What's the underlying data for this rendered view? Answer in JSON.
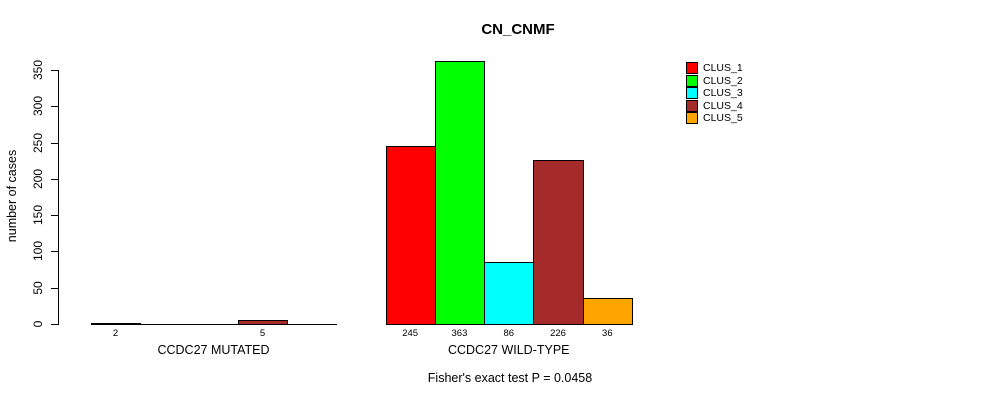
{
  "title": "CN_CNMF",
  "ylabel": "number of cases",
  "annotation": "Fisher's exact test P = 0.0458",
  "chart_data": {
    "type": "bar",
    "title": "CN_CNMF",
    "xlabel": "",
    "ylabel": "number of cases",
    "ylim": [
      0,
      350
    ],
    "yticks": [
      0,
      50,
      100,
      150,
      200,
      250,
      300,
      350
    ],
    "grid": false,
    "legend_position": "top-right",
    "series_names": [
      "CLUS_1",
      "CLUS_2",
      "CLUS_3",
      "CLUS_4",
      "CLUS_5"
    ],
    "series_colors": [
      "#FF0000",
      "#00FF00",
      "#00FFFF",
      "#A52A2A",
      "#FFA500"
    ],
    "legend": [
      {
        "label": "CLUS_1",
        "color": "#FF0000"
      },
      {
        "label": "CLUS_2",
        "color": "#00FF00"
      },
      {
        "label": "CLUS_3",
        "color": "#00FFFF"
      },
      {
        "label": "CLUS_4",
        "color": "#A52A2A"
      },
      {
        "label": "CLUS_5",
        "color": "#FFA500"
      }
    ],
    "groups": [
      {
        "label": "CCDC27 MUTATED",
        "values": [
          2,
          0,
          0,
          5,
          0
        ],
        "bar_labels": [
          "2",
          "",
          "",
          "5",
          ""
        ]
      },
      {
        "label": "CCDC27 WILD-TYPE",
        "values": [
          245,
          363,
          86,
          226,
          36
        ],
        "bar_labels": [
          "245",
          "363",
          "86",
          "226",
          "36"
        ]
      }
    ],
    "annotation": "Fisher's exact test P = 0.0458",
    "axis_color": "#000000",
    "bar_border_color": "#000000"
  }
}
